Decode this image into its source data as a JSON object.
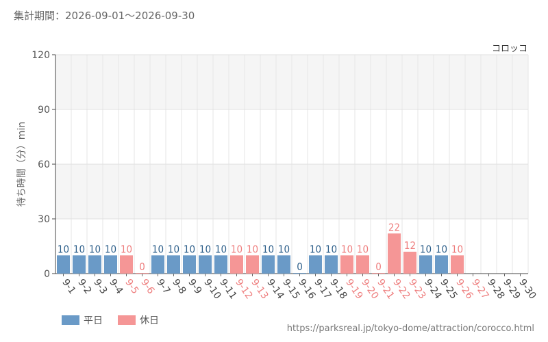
{
  "header": {
    "period_label": "集計期間：2026-09-01～2026-09-30"
  },
  "legend": {
    "weekday": "平日",
    "holiday": "休日"
  },
  "source_url": "https://parksreal.jp/tokyo-dome/attraction/corocco.html",
  "colors": {
    "weekday": "#6a9ac7",
    "holiday": "#f59696",
    "weekday_label": "#2d5f8a",
    "holiday_label": "#ee7d7d",
    "grid_band": "#f5f5f5"
  },
  "chart_data": {
    "type": "bar",
    "title": "",
    "series_name": "コロッコ",
    "ylabel": "待ち時間（分）min",
    "ylim": [
      0,
      120
    ],
    "yticks": [
      0,
      30,
      60,
      90,
      120
    ],
    "categories": [
      "9-1",
      "9-2",
      "9-3",
      "9-4",
      "9-5",
      "9-6",
      "9-7",
      "9-8",
      "9-9",
      "9-10",
      "9-11",
      "9-12",
      "9-13",
      "9-14",
      "9-15",
      "9-16",
      "9-17",
      "9-18",
      "9-19",
      "9-20",
      "9-21",
      "9-22",
      "9-23",
      "9-24",
      "9-25",
      "9-26",
      "9-27",
      "9-28",
      "9-29",
      "9-30"
    ],
    "day_type": [
      "weekday",
      "weekday",
      "weekday",
      "weekday",
      "holiday",
      "holiday",
      "weekday",
      "weekday",
      "weekday",
      "weekday",
      "weekday",
      "holiday",
      "holiday",
      "weekday",
      "weekday",
      "weekday",
      "weekday",
      "weekday",
      "holiday",
      "holiday",
      "holiday",
      "holiday",
      "holiday",
      "weekday",
      "weekday",
      "holiday",
      "holiday",
      "weekday",
      "weekday",
      "weekday"
    ],
    "values": [
      10,
      10,
      10,
      10,
      10,
      0,
      10,
      10,
      10,
      10,
      10,
      10,
      10,
      10,
      10,
      0,
      10,
      10,
      10,
      10,
      0,
      22,
      12,
      10,
      10,
      10,
      null,
      null,
      null,
      null
    ]
  }
}
